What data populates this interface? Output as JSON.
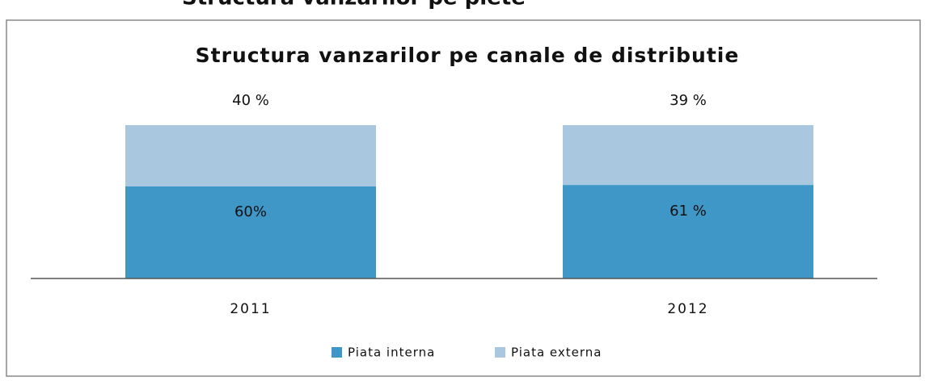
{
  "heading": "Structura vanzarilor pe piete",
  "chart_data": {
    "type": "bar",
    "stacked": true,
    "title": "Structura vanzarilor pe canale de distributie",
    "categories": [
      "2011",
      "2012"
    ],
    "series": [
      {
        "name": "Piata interna",
        "color": "#3f97c7",
        "values": [
          60,
          61
        ],
        "value_labels": [
          "60%",
          "61 %"
        ]
      },
      {
        "name": "Piata externa",
        "color": "#a9c8e0",
        "values": [
          40,
          39
        ],
        "value_labels": [
          "40 %",
          "39 %"
        ]
      }
    ],
    "legend": "bottom"
  }
}
